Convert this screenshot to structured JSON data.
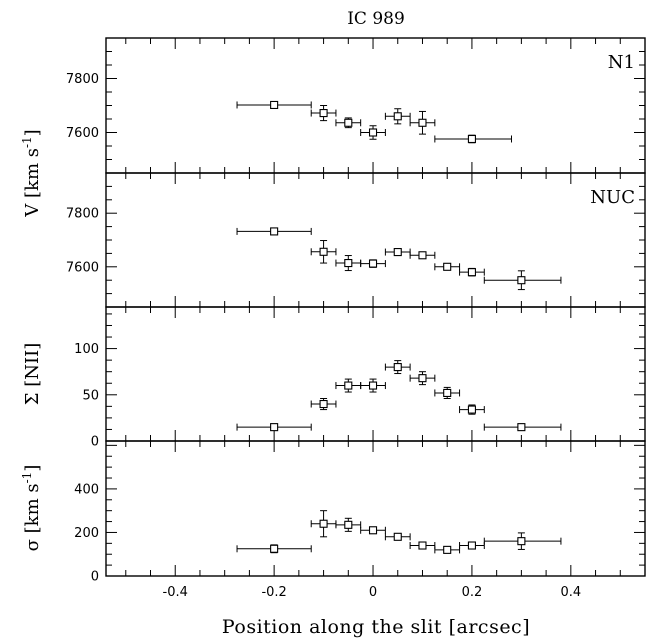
{
  "figure_title": "IC 989",
  "chart_data": [
    {
      "type": "scatter",
      "panel_label": "N1",
      "ylabel_text": "[km s",
      "ylabel_sup": "-1",
      "ylabel_close": "]",
      "ylabel_prefix": "V",
      "ylim": [
        7450,
        7950
      ],
      "yticks": [
        7800,
        7600
      ],
      "x": [
        -0.2,
        -0.1,
        -0.05,
        0.0,
        0.05,
        0.1,
        0.2
      ],
      "y": [
        7702,
        7672,
        7636,
        7600,
        7660,
        7636,
        7576
      ],
      "x_err_lo": [
        0.075,
        0.025,
        0.025,
        0.025,
        0.025,
        0.025,
        0.075
      ],
      "x_err_hi": [
        0.075,
        0.025,
        0.025,
        0.025,
        0.025,
        0.025,
        0.08
      ],
      "y_err": [
        12,
        28,
        18,
        25,
        28,
        42,
        14
      ]
    },
    {
      "type": "scatter",
      "panel_label": "NUC",
      "ylim": [
        7450,
        7950
      ],
      "yticks": [
        7800,
        7600
      ],
      "x": [
        -0.2,
        -0.1,
        -0.05,
        0.0,
        0.05,
        0.1,
        0.15,
        0.2,
        0.3
      ],
      "y": [
        7732,
        7656,
        7614,
        7612,
        7655,
        7643,
        7600,
        7580,
        7550
      ],
      "x_err_lo": [
        0.075,
        0.025,
        0.025,
        0.025,
        0.025,
        0.025,
        0.025,
        0.025,
        0.075
      ],
      "x_err_hi": [
        0.075,
        0.025,
        0.025,
        0.025,
        0.025,
        0.025,
        0.025,
        0.025,
        0.08
      ],
      "y_err": [
        12,
        42,
        28,
        14,
        12,
        10,
        10,
        14,
        35
      ]
    },
    {
      "type": "scatter",
      "ylabel_text": "Σ [NII]",
      "ylim": [
        0,
        145
      ],
      "yticks": [
        100,
        50,
        0
      ],
      "x": [
        -0.2,
        -0.1,
        -0.05,
        0.0,
        0.05,
        0.1,
        0.15,
        0.2,
        0.3
      ],
      "y": [
        15,
        40,
        60,
        60,
        80,
        68,
        52,
        34,
        15
      ],
      "x_err_lo": [
        0.075,
        0.025,
        0.025,
        0.025,
        0.025,
        0.025,
        0.025,
        0.025,
        0.075
      ],
      "x_err_hi": [
        0.075,
        0.025,
        0.025,
        0.025,
        0.025,
        0.025,
        0.025,
        0.025,
        0.08
      ],
      "y_err": [
        3,
        6,
        7,
        7,
        7,
        7,
        6,
        5,
        3
      ]
    },
    {
      "type": "scatter",
      "ylabel_prefix": "σ",
      "ylabel_text": "[km s",
      "ylabel_sup": "-1",
      "ylabel_close": "]",
      "ylim": [
        0,
        620
      ],
      "yticks": [
        400,
        200,
        0
      ],
      "x": [
        -0.2,
        -0.1,
        -0.05,
        0.0,
        0.05,
        0.1,
        0.15,
        0.2,
        0.3
      ],
      "y": [
        125,
        240,
        235,
        210,
        180,
        140,
        120,
        140,
        160
      ],
      "x_err_lo": [
        0.075,
        0.025,
        0.025,
        0.025,
        0.025,
        0.025,
        0.025,
        0.025,
        0.075
      ],
      "x_err_hi": [
        0.075,
        0.025,
        0.025,
        0.025,
        0.025,
        0.025,
        0.025,
        0.025,
        0.08
      ],
      "y_err": [
        18,
        60,
        30,
        15,
        12,
        12,
        12,
        15,
        38
      ]
    }
  ],
  "x_axis": {
    "xlim": [
      -0.54,
      0.55
    ],
    "ticks": [
      -0.4,
      -0.2,
      0,
      0.2,
      0.4
    ],
    "tick_labels": [
      "-0.4",
      "-0.2",
      "0",
      "0.2",
      "0.4"
    ],
    "xlabel": "Position along the slit [arcsec]"
  }
}
